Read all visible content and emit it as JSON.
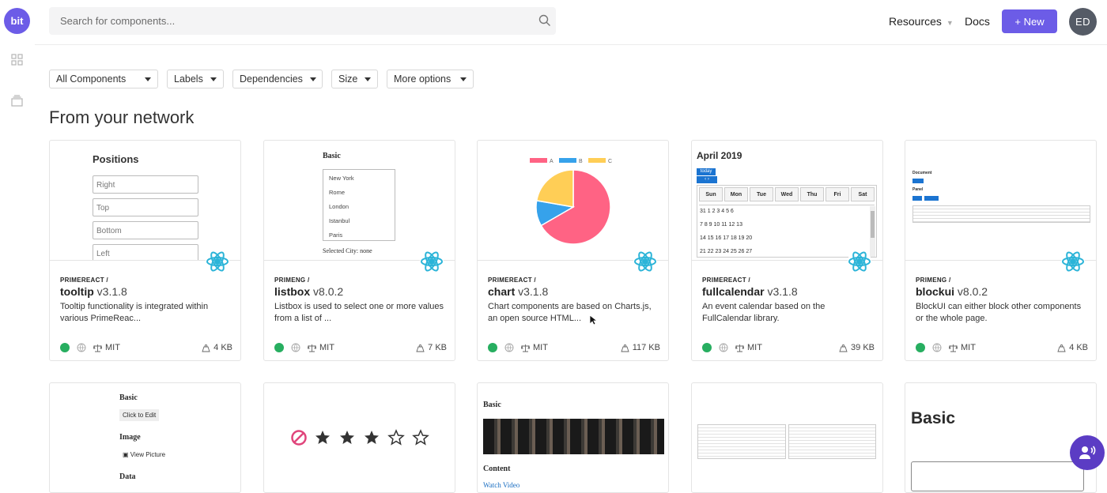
{
  "logo": {
    "text": "bit"
  },
  "search": {
    "placeholder": "Search for components..."
  },
  "nav": {
    "resources": "Resources",
    "docs": "Docs",
    "new_button": "+ New",
    "avatar_initials": "ED"
  },
  "filters": [
    "All Components",
    "Labels",
    "Dependencies",
    "Size",
    "More options"
  ],
  "section_title": "From your network",
  "cards": [
    {
      "owner": "PRIMEREACT /",
      "name": "tooltip",
      "version": "v3.1.8",
      "desc": "Tooltip functionality is integrated within various PrimeReac...",
      "license": "MIT",
      "size": "4 KB"
    },
    {
      "owner": "PRIMENG /",
      "name": "listbox",
      "version": "v8.0.2",
      "desc": "Listbox is used to select one or more values from a list of ...",
      "license": "MIT",
      "size": "7 KB"
    },
    {
      "owner": "PRIMEREACT /",
      "name": "chart",
      "version": "v3.1.8",
      "desc": "Chart components are based on Charts.js, an open source HTML...",
      "license": "MIT",
      "size": "117 KB"
    },
    {
      "owner": "PRIMEREACT /",
      "name": "fullcalendar",
      "version": "v3.1.8",
      "desc": "An event calendar based on the FullCalendar library.",
      "license": "MIT",
      "size": "39 KB"
    },
    {
      "owner": "PRIMENG /",
      "name": "blockui",
      "version": "v8.0.2",
      "desc": "BlockUI can either block other components or the whole page.",
      "license": "MIT",
      "size": "4 KB"
    }
  ],
  "previews": {
    "tooltip": {
      "title": "Positions",
      "fields": [
        "Right",
        "Top",
        "Bottom",
        "Left"
      ]
    },
    "listbox": {
      "title": "Basic",
      "items": [
        "New York",
        "Rome",
        "London",
        "Istanbul",
        "Paris"
      ],
      "selected": "Selected City: none"
    },
    "chart": {
      "legend": [
        "A",
        "B",
        "C"
      ],
      "colors": [
        "#ff6384",
        "#36a2eb",
        "#ffce56"
      ],
      "values": [
        300,
        50,
        100
      ]
    },
    "calendar": {
      "title": "April 2019",
      "today": "today",
      "days": [
        "Sun",
        "Mon",
        "Tue",
        "Wed",
        "Thu",
        "Fri",
        "Sat"
      ],
      "weeks": [
        "31 1 2 3 4 5 6",
        "7 8 9 10 11 12 13",
        "14 15 16 17 18 19 20",
        "21 22 23 24 25 26 27"
      ]
    },
    "blockui": {
      "doc": "Document",
      "panel": "Panel"
    },
    "row2_1": {
      "title": "Basic",
      "edit": "Click to Edit",
      "image": "Image",
      "view": "View Picture",
      "data": "Data"
    },
    "row2_3": {
      "title": "Basic",
      "content": "Content",
      "link": "Watch Video"
    },
    "row2_5": {
      "title": "Basic"
    }
  },
  "colors": {
    "accent": "#6c5ce7",
    "status": "#27ae60",
    "chat": "#5b3cc4"
  }
}
